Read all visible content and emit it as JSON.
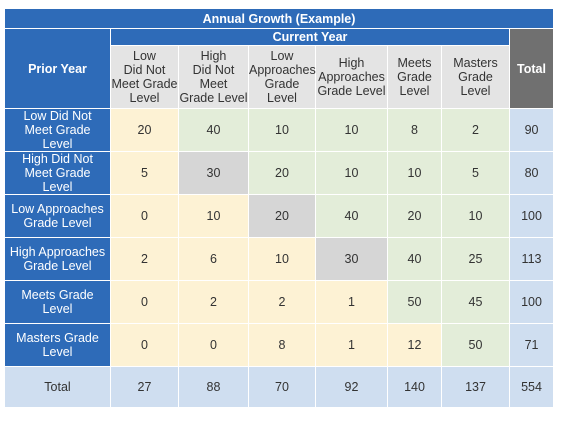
{
  "title": "Annual Growth (Example)",
  "prior_year_label": "Prior Year",
  "current_year_label": "Current Year",
  "total_label": "Total",
  "column_headers": [
    "Low\nDid Not\nMeet Grade\nLevel",
    "High\nDid Not Meet\nGrade Level",
    "Low\nApproaches\nGrade\nLevel",
    "High\nApproaches\nGrade Level",
    "Meets\nGrade\nLevel",
    "Masters\nGrade Level"
  ],
  "rows": [
    {
      "label": "Low Did Not\nMeet Grade\nLevel",
      "values": [
        "20",
        "40",
        "10",
        "10",
        "8",
        "2"
      ],
      "total": "90"
    },
    {
      "label": "High Did Not\nMeet Grade\nLevel",
      "values": [
        "5",
        "30",
        "20",
        "10",
        "10",
        "5"
      ],
      "total": "80"
    },
    {
      "label": "Low Approaches\nGrade Level",
      "values": [
        "0",
        "10",
        "20",
        "40",
        "20",
        "10"
      ],
      "total": "100"
    },
    {
      "label": "High Approaches\nGrade Level",
      "values": [
        "2",
        "6",
        "10",
        "30",
        "40",
        "25"
      ],
      "total": "113"
    },
    {
      "label": "Meets Grade\nLevel",
      "values": [
        "0",
        "2",
        "2",
        "1",
        "50",
        "45"
      ],
      "total": "100"
    },
    {
      "label": "Masters Grade\nLevel",
      "values": [
        "0",
        "0",
        "8",
        "1",
        "12",
        "50"
      ],
      "total": "71"
    }
  ],
  "totals_row": {
    "label": "Total",
    "values": [
      "27",
      "88",
      "70",
      "92",
      "140",
      "137"
    ],
    "grand_total": "554"
  },
  "colors": {
    "header_blue": "#2e6bb8",
    "total_header_gray": "#707070",
    "column_header_gray": "#e4e4e4",
    "decline_yellow": "#fdf2d4",
    "growth_green": "#e3edd9",
    "same_level_gray": "#d6d6d6",
    "totals_blue": "#cfdef0",
    "grand_total_blue": "#a7c3e6"
  }
}
